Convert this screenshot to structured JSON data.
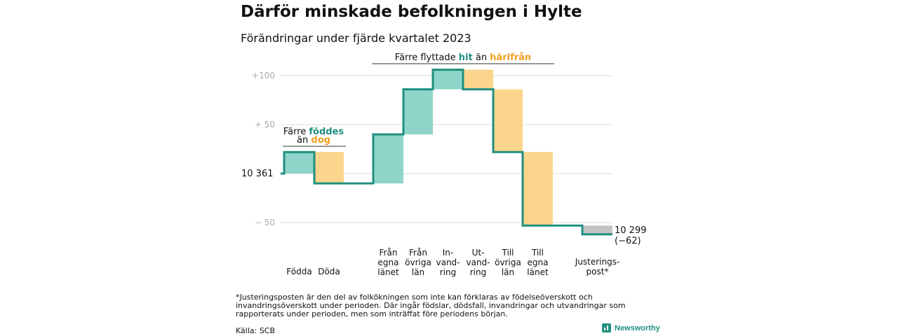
{
  "title": "Därför minskade befolkningen i Hylte",
  "subtitle": "Förändringar under fjärde kvartalet 2023",
  "footnote": "*Justeringsposten är den del av folkökningen som inte kan förklaras av födelseöverskott och invandringsöverskott under perioden. Där ingår födslar, dödsfall, invandringar och utvandringar som rapporterats under perioden, men som inträffat före periodens början.",
  "source": "Källa: SCB",
  "brand": "Newsworthy",
  "colors": {
    "increase": "#8fd4c9",
    "decrease": "#fbd58c",
    "adjustment": "#c4c4c4",
    "line": "#1f8f7f",
    "teal_text": "#1f8f7f",
    "orange_text": "#f0a020",
    "grid": "#dddddd",
    "tick": "#aaaaaa"
  },
  "chart_data": {
    "type": "waterfall",
    "start_value": 10361,
    "start_label": "10  361",
    "end_value": 10299,
    "end_label": "10 299",
    "end_change_label": "(−62)",
    "yticks": [
      {
        "value": 100,
        "label": "+100"
      },
      {
        "value": 50,
        "label": "+  50"
      },
      {
        "value": 0,
        "label": ""
      },
      {
        "value": -50,
        "label": "−  50"
      }
    ],
    "ylim": [
      -62,
      110
    ],
    "steps": [
      {
        "lines": [
          "Födda"
        ],
        "delta": 22,
        "kind": "increase"
      },
      {
        "lines": [
          "Döda"
        ],
        "delta": -32,
        "kind": "decrease"
      },
      {
        "lines": [
          "Från",
          "egna",
          "länet"
        ],
        "delta": 50,
        "kind": "increase"
      },
      {
        "lines": [
          "Från",
          "övriga",
          "län"
        ],
        "delta": 46,
        "kind": "increase"
      },
      {
        "lines": [
          "In-",
          "vand-",
          "ring"
        ],
        "delta": 20,
        "kind": "increase"
      },
      {
        "lines": [
          "Ut-",
          "vand-",
          "ring"
        ],
        "delta": -20,
        "kind": "decrease"
      },
      {
        "lines": [
          "Till",
          "övriga",
          "län"
        ],
        "delta": -64,
        "kind": "decrease"
      },
      {
        "lines": [
          "Till",
          "egna",
          "länet"
        ],
        "delta": -75,
        "kind": "decrease"
      },
      {
        "lines": [
          "Justerings-",
          "post*"
        ],
        "delta": -9,
        "kind": "adjustment"
      }
    ],
    "annotations": [
      {
        "id": "births",
        "line1": "Färre ",
        "hl1": "föddes",
        "line2": "än ",
        "hl2": "dog"
      },
      {
        "id": "migration",
        "line1": "Färre flyttade ",
        "hl1": "hit",
        "mid": " än ",
        "hl2": "härifrån"
      }
    ]
  }
}
